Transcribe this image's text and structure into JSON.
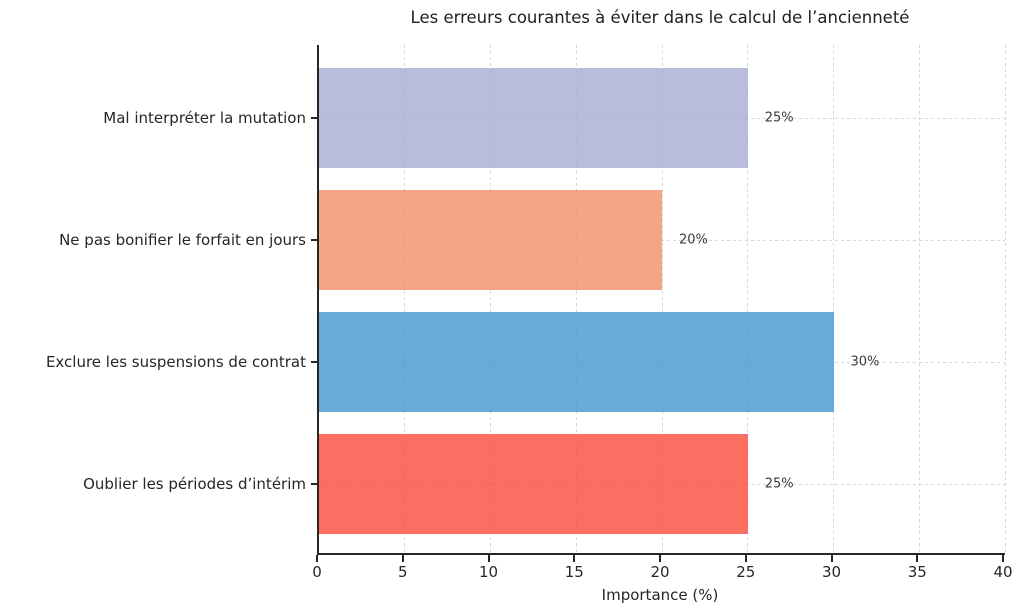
{
  "chart_data": {
    "type": "bar",
    "orientation": "horizontal",
    "title": "Les erreurs courantes à éviter dans le calcul de l’ancienneté",
    "categories": [
      "Mal interpréter la mutation",
      "Ne pas bonifier le forfait en jours",
      "Exclure les suspensions de contrat",
      "Oublier les périodes d’intérim"
    ],
    "values": [
      25,
      20,
      30,
      25
    ],
    "value_labels": [
      "25%",
      "20%",
      "30%",
      "25%"
    ],
    "bar_colors": [
      "#b9bcdc",
      "#f2a683",
      "#69aad8",
      "#fc6e62"
    ],
    "bar_colors_rgba": [
      "rgba(168,171,211,0.8)",
      "rgba(239,144,100,0.8)",
      "rgba(68,149,206,0.8)",
      "rgba(251,74,59,0.8)"
    ],
    "xlabel": "Importance (%)",
    "xlim": [
      0,
      40
    ],
    "x_ticks": [
      0,
      5,
      10,
      15,
      20,
      25,
      30,
      35,
      40
    ],
    "grid": "dashed",
    "legend": "none"
  }
}
